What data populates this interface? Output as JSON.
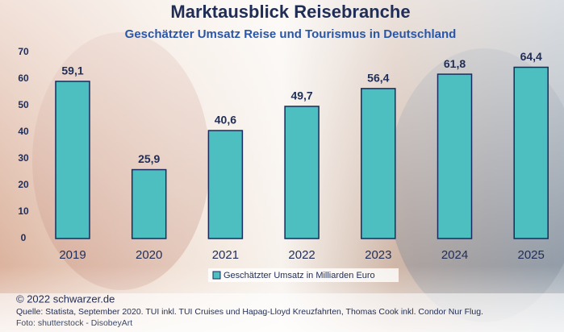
{
  "chart_data": {
    "type": "bar",
    "title": "Marktausblick Reisebranche",
    "subtitle": "Geschätzter Umsatz Reise und Tourismus in Deutschland",
    "categories": [
      "2019",
      "2020",
      "2021",
      "2022",
      "2023",
      "2024",
      "2025"
    ],
    "series": [
      {
        "name": "Geschätzter Umsatz in Milliarden Euro",
        "color": "#4dbfc1",
        "values": [
          59.1,
          25.9,
          40.6,
          49.7,
          56.4,
          61.8,
          64.4
        ],
        "value_labels": [
          "59,1",
          "25,9",
          "40,6",
          "49,7",
          "56,4",
          "61,8",
          "64,4"
        ]
      }
    ],
    "ylim": [
      0,
      70
    ],
    "yticks": [
      0,
      10,
      20,
      30,
      40,
      50,
      60,
      70
    ],
    "grid": false,
    "legend": "bottom"
  },
  "footer": {
    "copyright": "© 2022 schwarzer.de",
    "source": "Quelle: Statista, September 2020. TUI inkl. TUI Cruises und Hapag-Lloyd Kreuzfahrten, Thomas Cook inkl. Condor Nur Flug.",
    "photo": "Foto: shutterstock - DisobeyArt"
  }
}
